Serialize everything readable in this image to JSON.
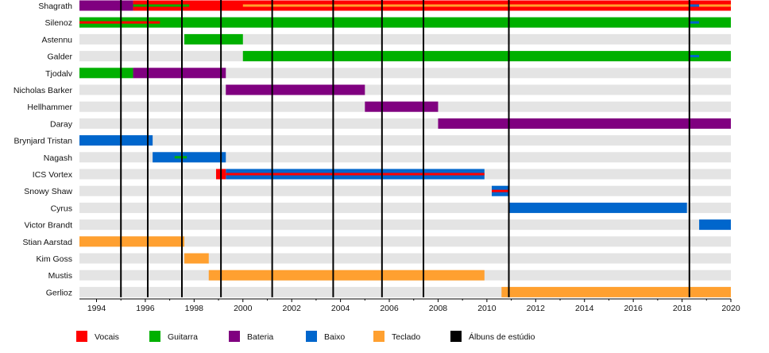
{
  "chart_data": {
    "type": "timeline",
    "title": "",
    "xlabel": "",
    "ylabel": "",
    "xlim": [
      1993.3,
      2020.0
    ],
    "x_ticks": [
      "1994",
      "1996",
      "1998",
      "2000",
      "2002",
      "2004",
      "2006",
      "2008",
      "2010",
      "2012",
      "2014",
      "2016",
      "2018",
      "2020"
    ],
    "x_tick_values": [
      1994,
      1996,
      1998,
      2000,
      2002,
      2004,
      2006,
      2008,
      2010,
      2012,
      2014,
      2016,
      2018,
      2020
    ],
    "grid": "alternating-row-stripes",
    "legend_position": "bottom",
    "roles": [
      {
        "key": "vocais",
        "label": "Vocais",
        "color": "#ff0000"
      },
      {
        "key": "guitarra",
        "label": "Guitarra",
        "color": "#00b000"
      },
      {
        "key": "bateria",
        "label": "Bateria",
        "color": "#800080"
      },
      {
        "key": "baixo",
        "label": "Baixo",
        "color": "#0066cc"
      },
      {
        "key": "teclado",
        "label": "Teclado",
        "color": "#ffa030"
      },
      {
        "key": "albuns",
        "label": "Álbuns de estúdio",
        "color": "#000000"
      }
    ],
    "albums": [
      1995.0,
      1996.1,
      1997.5,
      1999.1,
      2001.2,
      2003.7,
      2005.7,
      2007.4,
      2010.9,
      2018.3
    ],
    "members": [
      {
        "name": "Shagrath",
        "bars": [
          {
            "role": "bateria",
            "start": 1993.3,
            "end": 1995.5
          },
          {
            "role": "vocais",
            "start": 1995.5,
            "end": 2020.0
          },
          {
            "role": "teclado",
            "start": 2000.0,
            "end": 2020.0,
            "thin": true
          },
          {
            "role": "guitarra",
            "start": 1995.5,
            "end": 1997.8,
            "thin": true
          },
          {
            "role": "baixo",
            "start": 2018.3,
            "end": 2018.7,
            "thin": true
          }
        ]
      },
      {
        "name": "Silenoz",
        "bars": [
          {
            "role": "guitarra",
            "start": 1993.3,
            "end": 2020.0
          },
          {
            "role": "vocais",
            "start": 1993.3,
            "end": 1996.6,
            "thin": true
          },
          {
            "role": "baixo",
            "start": 2018.3,
            "end": 2018.7,
            "thin": true
          }
        ]
      },
      {
        "name": "Astennu",
        "bars": [
          {
            "role": "guitarra",
            "start": 1997.6,
            "end": 2000.0
          }
        ]
      },
      {
        "name": "Galder",
        "bars": [
          {
            "role": "guitarra",
            "start": 2000.0,
            "end": 2020.0
          },
          {
            "role": "baixo",
            "start": 2018.3,
            "end": 2018.7,
            "thin": true
          }
        ]
      },
      {
        "name": "Tjodalv",
        "bars": [
          {
            "role": "guitarra",
            "start": 1993.3,
            "end": 1995.5
          },
          {
            "role": "bateria",
            "start": 1995.5,
            "end": 1999.3
          }
        ]
      },
      {
        "name": "Nicholas Barker",
        "bars": [
          {
            "role": "bateria",
            "start": 1999.3,
            "end": 2005.0
          }
        ]
      },
      {
        "name": "Hellhammer",
        "bars": [
          {
            "role": "bateria",
            "start": 2005.0,
            "end": 2008.0
          }
        ]
      },
      {
        "name": "Daray",
        "bars": [
          {
            "role": "bateria",
            "start": 2008.0,
            "end": 2020.0
          }
        ]
      },
      {
        "name": "Brynjard Tristan",
        "bars": [
          {
            "role": "baixo",
            "start": 1993.3,
            "end": 1996.3
          }
        ]
      },
      {
        "name": "Nagash",
        "bars": [
          {
            "role": "baixo",
            "start": 1996.3,
            "end": 1999.3
          },
          {
            "role": "guitarra",
            "start": 1997.2,
            "end": 1997.7,
            "thin": true
          }
        ]
      },
      {
        "name": "ICS Vortex",
        "bars": [
          {
            "role": "baixo",
            "start": 1999.3,
            "end": 2009.9
          },
          {
            "role": "vocais",
            "start": 1998.9,
            "end": 1999.3
          },
          {
            "role": "vocais",
            "start": 1999.3,
            "end": 2009.9,
            "thin": true
          }
        ]
      },
      {
        "name": "Snowy Shaw",
        "bars": [
          {
            "role": "baixo",
            "start": 2010.2,
            "end": 2010.9
          },
          {
            "role": "vocais",
            "start": 2010.2,
            "end": 2010.9,
            "thin": true
          }
        ]
      },
      {
        "name": "Cyrus",
        "bars": [
          {
            "role": "baixo",
            "start": 2010.9,
            "end": 2018.2
          }
        ]
      },
      {
        "name": "Victor Brandt",
        "bars": [
          {
            "role": "baixo",
            "start": 2018.7,
            "end": 2020.0
          }
        ]
      },
      {
        "name": "Stian Aarstad",
        "bars": [
          {
            "role": "teclado",
            "start": 1993.3,
            "end": 1997.6
          }
        ]
      },
      {
        "name": "Kim Goss",
        "bars": [
          {
            "role": "teclado",
            "start": 1997.6,
            "end": 1998.6
          }
        ]
      },
      {
        "name": "Mustis",
        "bars": [
          {
            "role": "teclado",
            "start": 1998.6,
            "end": 2009.9
          }
        ]
      },
      {
        "name": "Gerlioz",
        "bars": [
          {
            "role": "teclado",
            "start": 2010.6,
            "end": 2020.0
          }
        ]
      }
    ]
  }
}
